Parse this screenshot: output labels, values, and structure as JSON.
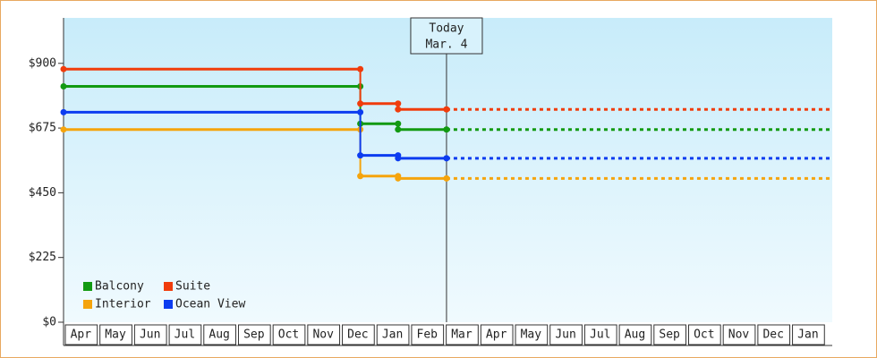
{
  "chart_data": {
    "type": "step",
    "categories": [
      "Apr",
      "May",
      "Jun",
      "Jul",
      "Aug",
      "Sep",
      "Oct",
      "Nov",
      "Dec",
      "Jan",
      "Feb",
      "Mar",
      "Apr",
      "May",
      "Jun",
      "Jul",
      "Aug",
      "Sep",
      "Oct",
      "Nov",
      "Dec",
      "Jan"
    ],
    "x": [
      0,
      8.57,
      9.66,
      11.06
    ],
    "xlim": [
      0,
      22.2
    ],
    "ylim": [
      0,
      1058
    ],
    "yticks": [
      {
        "value": 0,
        "label": "$0"
      },
      {
        "value": 225,
        "label": "$225"
      },
      {
        "value": 450,
        "label": "$450"
      },
      {
        "value": 675,
        "label": "$675"
      },
      {
        "value": 900,
        "label": "$900"
      }
    ],
    "series": [
      {
        "name": "Balcony",
        "color": "#129a12",
        "values": [
          820,
          690,
          670,
          670
        ]
      },
      {
        "name": "Suite",
        "color": "#f03c0c",
        "values": [
          880,
          760,
          740,
          740
        ]
      },
      {
        "name": "Interior",
        "color": "#f5a40c",
        "values": [
          670,
          508,
          500,
          500
        ]
      },
      {
        "name": "Ocean View",
        "color": "#0c3cf0",
        "values": [
          730,
          580,
          570,
          570
        ]
      }
    ],
    "annotation": {
      "x": 11.06,
      "lines": [
        "Today",
        "Mar. 4"
      ]
    },
    "projection": "dashed"
  }
}
